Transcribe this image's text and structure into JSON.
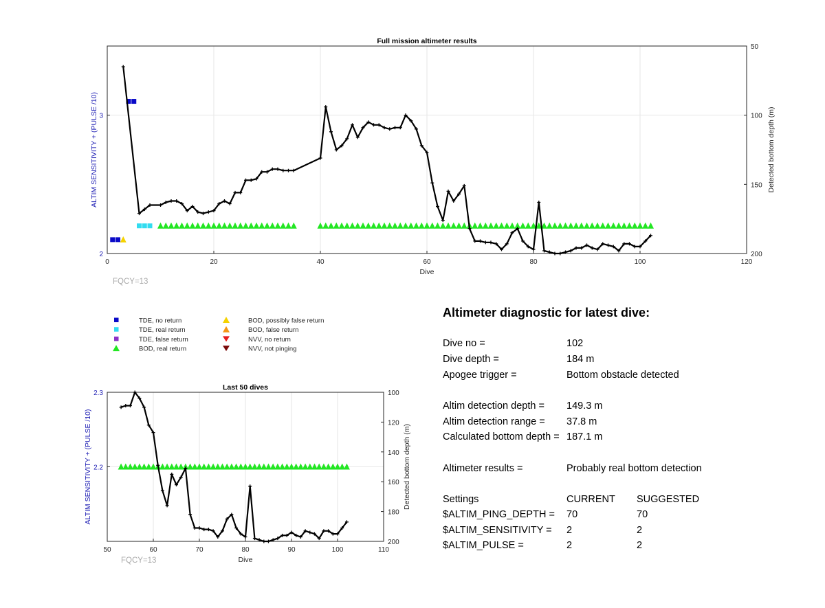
{
  "colors": {
    "axis_label_blue": "#1f1fb4",
    "tde_no_return": "#0a0ac8",
    "tde_real_return": "#32dcf0",
    "tde_false_return": "#8c32c8",
    "bod_real_return": "#22e622",
    "bod_possibly_false": "#f5d200",
    "bod_false": "#f59614",
    "nvv_no_return": "#e61e1e",
    "nvv_not_pinging": "#7a0a0a",
    "fqcy_gray": "#aaaaaa"
  },
  "chart_data": [
    {
      "type": "scatter",
      "title": "Full mission altimeter results",
      "xlabel": "Dive",
      "ylabel_left": "ALTIM SENSITIVITY + (PULSE /10)",
      "ylabel_right": "Detected bottom depth (m)",
      "xlim": [
        0,
        120
      ],
      "ylim_left": [
        2,
        3.5
      ],
      "ylim_right_reversed": [
        50,
        200
      ],
      "xticks": [
        0,
        20,
        40,
        60,
        80,
        100,
        120
      ],
      "yticks_left": [
        2,
        3
      ],
      "yticks_right": [
        50,
        100,
        150,
        200
      ],
      "grid": true,
      "annotation": "FQCY=13",
      "tde_no_return": [
        [
          1,
          2.1
        ],
        [
          2,
          2.1
        ],
        [
          4,
          3.1
        ],
        [
          5,
          3.1
        ]
      ],
      "tde_real_return": [
        [
          6,
          2.2
        ],
        [
          7,
          2.2
        ],
        [
          8,
          2.2
        ]
      ],
      "bod_possibly_false": [
        [
          3,
          2.1
        ]
      ],
      "bod_real_return_ranges": [
        [
          10,
          35
        ],
        [
          40,
          102
        ]
      ],
      "bod_real_return_value": 2.2,
      "depth_line": [
        [
          3,
          65
        ],
        [
          6,
          171
        ],
        [
          7,
          168
        ],
        [
          8,
          165
        ],
        [
          10,
          165
        ],
        [
          11,
          163
        ],
        [
          12,
          162
        ],
        [
          13,
          162
        ],
        [
          14,
          164
        ],
        [
          15,
          169
        ],
        [
          16,
          166
        ],
        [
          17,
          170
        ],
        [
          18,
          171
        ],
        [
          19,
          170
        ],
        [
          20,
          169
        ],
        [
          21,
          164
        ],
        [
          22,
          162
        ],
        [
          23,
          164
        ],
        [
          24,
          156
        ],
        [
          25,
          156
        ],
        [
          26,
          147
        ],
        [
          27,
          147
        ],
        [
          28,
          146
        ],
        [
          29,
          141
        ],
        [
          30,
          141
        ],
        [
          31,
          139
        ],
        [
          32,
          139
        ],
        [
          33,
          140
        ],
        [
          34,
          140
        ],
        [
          35,
          140
        ],
        [
          40,
          131
        ],
        [
          41,
          94
        ],
        [
          42,
          112
        ],
        [
          43,
          125
        ],
        [
          44,
          122
        ],
        [
          45,
          117
        ],
        [
          46,
          107
        ],
        [
          47,
          116
        ],
        [
          48,
          109
        ],
        [
          49,
          105
        ],
        [
          50,
          107
        ],
        [
          51,
          107
        ],
        [
          52,
          109
        ],
        [
          53,
          110
        ],
        [
          54,
          109
        ],
        [
          55,
          109
        ],
        [
          56,
          100
        ],
        [
          57,
          104
        ],
        [
          58,
          110
        ],
        [
          59,
          122
        ],
        [
          60,
          127
        ],
        [
          61,
          149
        ],
        [
          62,
          166
        ],
        [
          63,
          176
        ],
        [
          64,
          155
        ],
        [
          65,
          162
        ],
        [
          66,
          157
        ],
        [
          67,
          151
        ],
        [
          68,
          182
        ],
        [
          69,
          191
        ],
        [
          70,
          191
        ],
        [
          71,
          192
        ],
        [
          72,
          192
        ],
        [
          73,
          193
        ],
        [
          74,
          197
        ],
        [
          75,
          193
        ],
        [
          76,
          185
        ],
        [
          77,
          182
        ],
        [
          78,
          191
        ],
        [
          79,
          195
        ],
        [
          80,
          197
        ],
        [
          81,
          163
        ],
        [
          82,
          198
        ],
        [
          83,
          199
        ],
        [
          84,
          200
        ],
        [
          85,
          200
        ],
        [
          86,
          199
        ],
        [
          87,
          198
        ],
        [
          88,
          196
        ],
        [
          89,
          196
        ],
        [
          90,
          194
        ],
        [
          91,
          196
        ],
        [
          92,
          197
        ],
        [
          93,
          193
        ],
        [
          94,
          194
        ],
        [
          95,
          195
        ],
        [
          96,
          198
        ],
        [
          97,
          193
        ],
        [
          98,
          193
        ],
        [
          99,
          195
        ],
        [
          100,
          195
        ],
        [
          101,
          191
        ],
        [
          102,
          187
        ]
      ]
    },
    {
      "type": "scatter",
      "title": "Last 50 dives",
      "xlabel": "Dive",
      "ylabel_left": "ALTIM SENSITIVITY + (PULSE /10)",
      "ylabel_right": "Detected bottom depth (m)",
      "xlim": [
        50,
        110
      ],
      "ylim_left": [
        2.1,
        2.3
      ],
      "ylim_right_reversed": [
        100,
        200
      ],
      "xticks": [
        50,
        60,
        70,
        80,
        90,
        100,
        110
      ],
      "yticks_left": [
        2.2,
        2.3
      ],
      "yticks_right": [
        100,
        120,
        140,
        160,
        180,
        200
      ],
      "grid": true,
      "annotation": "FQCY=13",
      "bod_real_return_ranges": [
        [
          53,
          102
        ]
      ],
      "bod_real_return_value": 2.2,
      "depth_line": [
        [
          53,
          110
        ],
        [
          54,
          109
        ],
        [
          55,
          109
        ],
        [
          56,
          100
        ],
        [
          57,
          104
        ],
        [
          58,
          110
        ],
        [
          59,
          122
        ],
        [
          60,
          127
        ],
        [
          61,
          149
        ],
        [
          62,
          166
        ],
        [
          63,
          176
        ],
        [
          64,
          155
        ],
        [
          65,
          162
        ],
        [
          66,
          157
        ],
        [
          67,
          151
        ],
        [
          68,
          182
        ],
        [
          69,
          191
        ],
        [
          70,
          191
        ],
        [
          71,
          192
        ],
        [
          72,
          192
        ],
        [
          73,
          193
        ],
        [
          74,
          197
        ],
        [
          75,
          193
        ],
        [
          76,
          185
        ],
        [
          77,
          182
        ],
        [
          78,
          191
        ],
        [
          79,
          195
        ],
        [
          80,
          197
        ],
        [
          81,
          163
        ],
        [
          82,
          198
        ],
        [
          83,
          199
        ],
        [
          84,
          200
        ],
        [
          85,
          200
        ],
        [
          86,
          199
        ],
        [
          87,
          198
        ],
        [
          88,
          196
        ],
        [
          89,
          196
        ],
        [
          90,
          194
        ],
        [
          91,
          196
        ],
        [
          92,
          197
        ],
        [
          93,
          193
        ],
        [
          94,
          194
        ],
        [
          95,
          195
        ],
        [
          96,
          198
        ],
        [
          97,
          193
        ],
        [
          98,
          193
        ],
        [
          99,
          195
        ],
        [
          100,
          195
        ],
        [
          101,
          191
        ],
        [
          102,
          187
        ]
      ]
    }
  ],
  "legend": {
    "placement": "middle-left",
    "items": [
      {
        "label": "TDE, no return",
        "marker": "square",
        "color_key": "tde_no_return"
      },
      {
        "label": "TDE, real return",
        "marker": "square",
        "color_key": "tde_real_return"
      },
      {
        "label": "TDE, false return",
        "marker": "square",
        "color_key": "tde_false_return"
      },
      {
        "label": "BOD, real return",
        "marker": "triangle-up",
        "color_key": "bod_real_return"
      },
      {
        "label": "BOD, possibly false return",
        "marker": "triangle-up",
        "color_key": "bod_possibly_false"
      },
      {
        "label": "BOD, false return",
        "marker": "triangle-up",
        "color_key": "bod_false"
      },
      {
        "label": "NVV, no return",
        "marker": "triangle-down",
        "color_key": "nvv_no_return"
      },
      {
        "label": "NVV, not pinging",
        "marker": "triangle-down",
        "color_key": "nvv_not_pinging"
      }
    ]
  },
  "diagnostic": {
    "title": "Altimeter diagnostic for latest dive:",
    "dive_no_label": "Dive no =",
    "dive_no": "102",
    "dive_depth_label": "Dive depth =",
    "dive_depth": "184 m",
    "apogee_label": "Apogee trigger =",
    "apogee": "Bottom obstacle detected",
    "detect_depth_label": "Altim detection depth =",
    "detect_depth": "149.3 m",
    "detect_range_label": "Altim detection range =",
    "detect_range": "37.8 m",
    "calc_bottom_label": "Calculated bottom depth =",
    "calc_bottom": "187.1 m",
    "results_label": "Altimeter results =",
    "results": "Probably real bottom detection",
    "settings_label": "Settings",
    "current_label": "CURRENT",
    "suggested_label": "SUGGESTED",
    "settings": [
      {
        "name": "$ALTIM_PING_DEPTH =",
        "current": "70",
        "suggested": "70"
      },
      {
        "name": "$ALTIM_SENSITIVITY =",
        "current": "2",
        "suggested": "2"
      },
      {
        "name": "$ALTIM_PULSE =",
        "current": "2",
        "suggested": "2"
      }
    ]
  }
}
